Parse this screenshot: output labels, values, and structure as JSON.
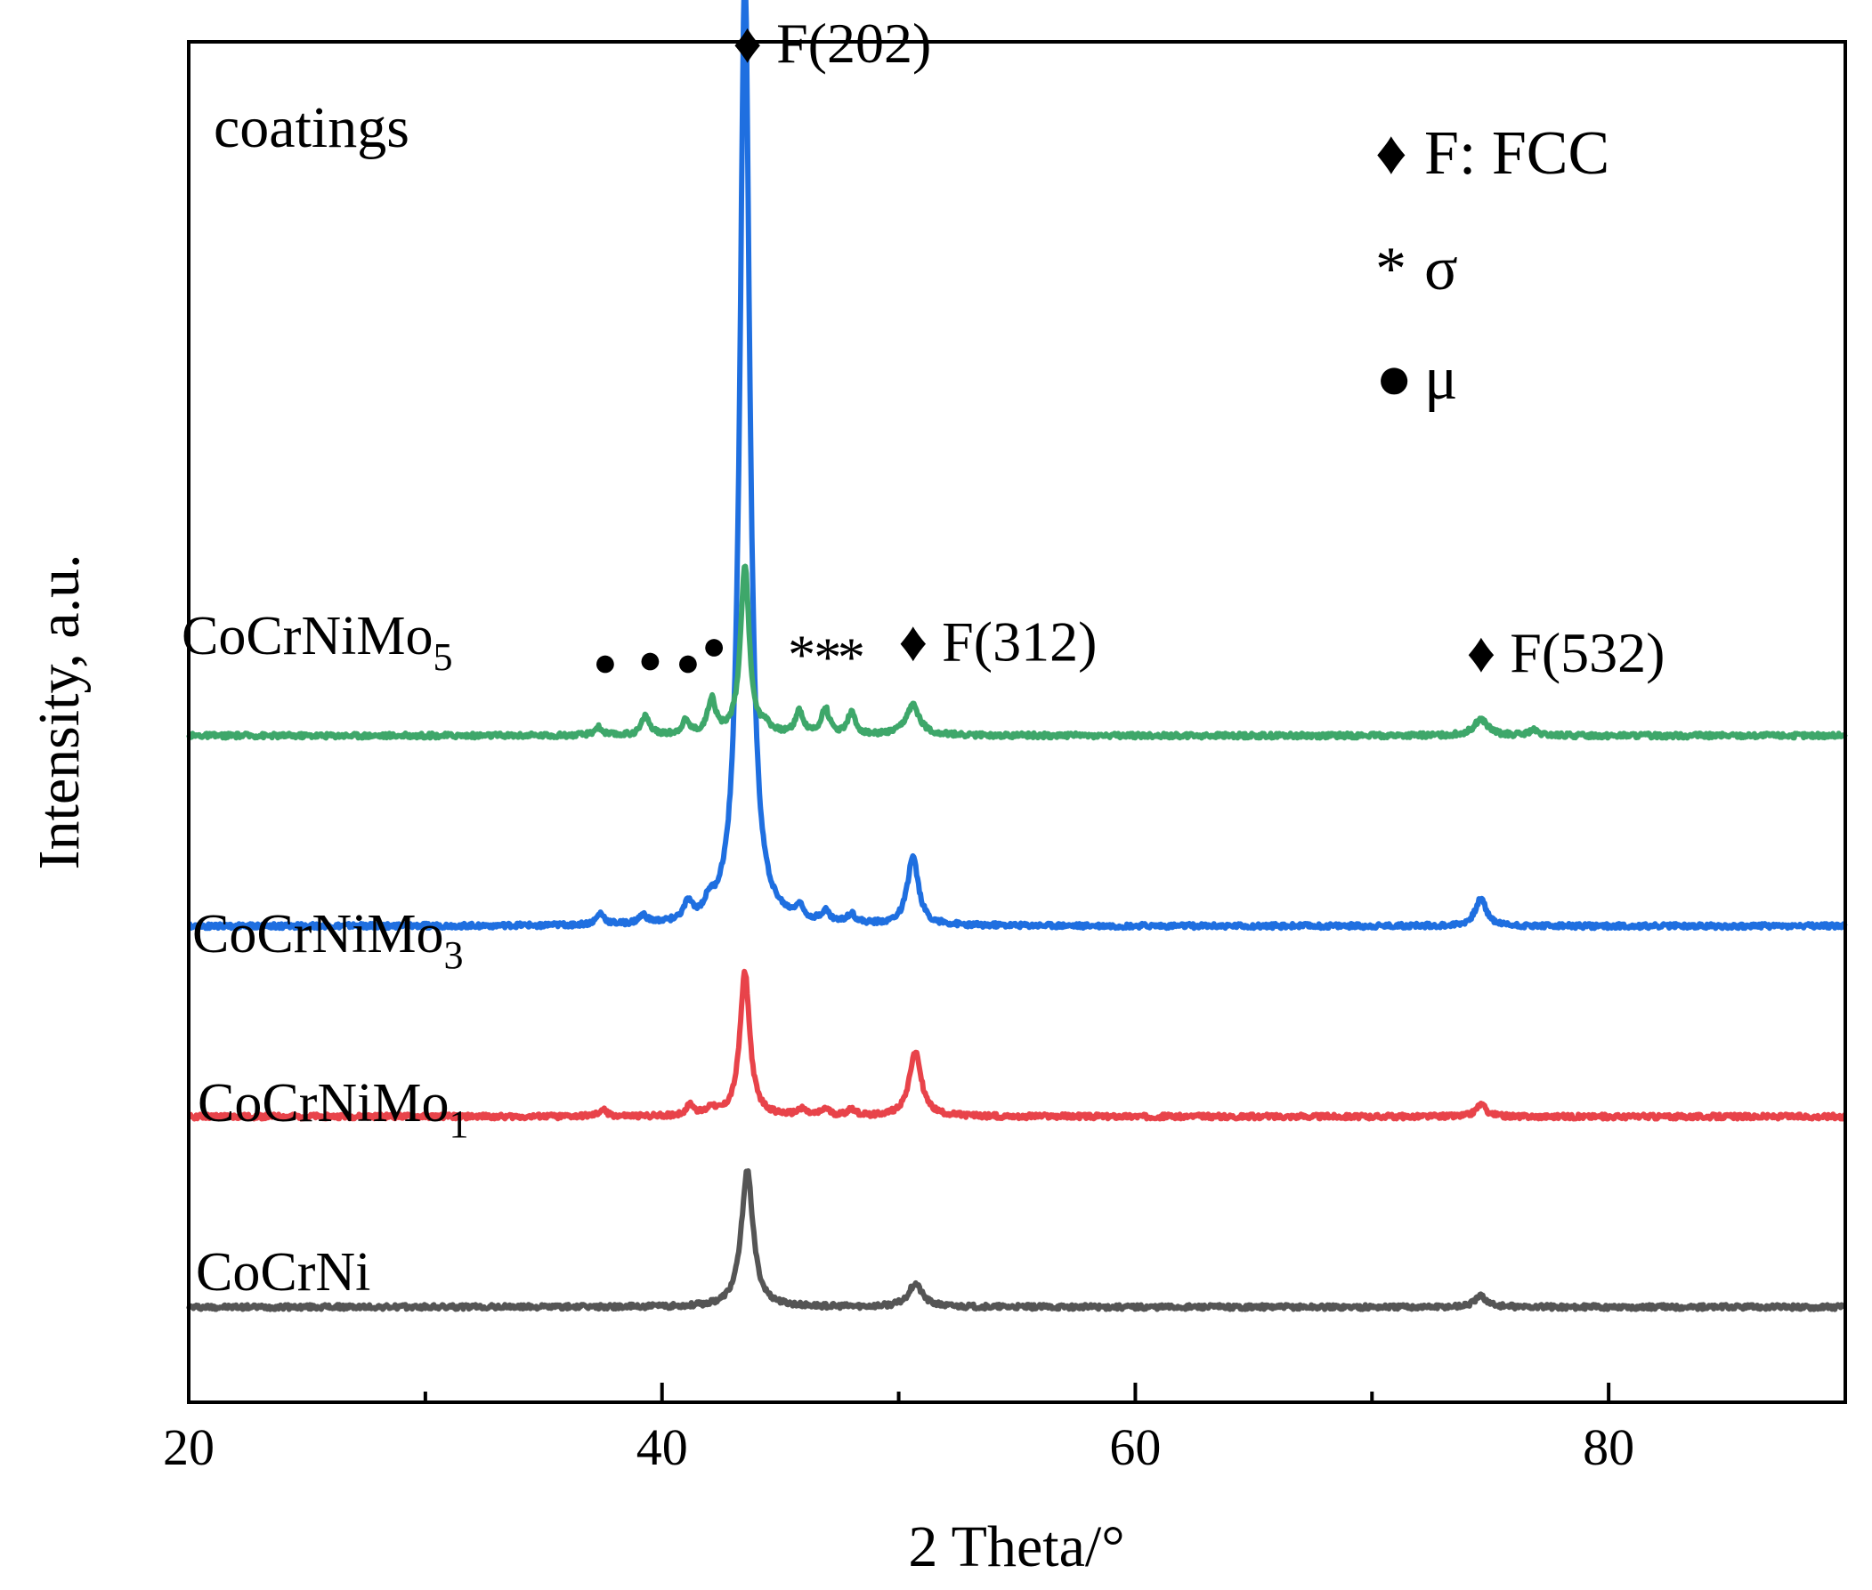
{
  "chart_data": {
    "type": "line",
    "panel_label": "coatings",
    "xlabel": "2 Theta/°",
    "ylabel": "Intensity, a.u.",
    "xlim": [
      20,
      90
    ],
    "ylim": [
      0,
      100
    ],
    "x_ticks": [
      20,
      40,
      60,
      80
    ],
    "x_tick_labels": [
      "20",
      "40",
      "60",
      "80"
    ],
    "x_minor_ticks": [
      30,
      50,
      70
    ],
    "series": [
      {
        "name": "CoCrNi",
        "base": "CoCrNi",
        "sub": "",
        "color": "#555555",
        "baseline": 7,
        "peaks": [
          [
            43.6,
            10.0,
            0.3
          ],
          [
            50.7,
            1.7,
            0.35
          ],
          [
            74.6,
            0.8,
            0.3
          ]
        ]
      },
      {
        "name": "CoCrNiMo1",
        "base": "CoCrNiMo",
        "sub": "1",
        "color": "#e8434a",
        "baseline": 21,
        "peaks": [
          [
            43.5,
            10.6,
            0.25
          ],
          [
            50.7,
            4.8,
            0.3
          ],
          [
            74.6,
            0.9,
            0.25
          ],
          [
            37.5,
            0.5,
            0.2
          ],
          [
            41.2,
            0.8,
            0.2
          ],
          [
            42.1,
            0.6,
            0.2
          ],
          [
            45.9,
            0.5,
            0.2
          ],
          [
            46.9,
            0.5,
            0.2
          ],
          [
            48.0,
            0.5,
            0.2
          ]
        ]
      },
      {
        "name": "CoCrNiMo3",
        "base": "CoCrNiMo",
        "sub": "3",
        "color": "#1f6fe0",
        "baseline": 35,
        "peaks": [
          [
            43.5,
            70.0,
            0.25
          ],
          [
            50.6,
            5.0,
            0.28
          ],
          [
            74.6,
            2.0,
            0.28
          ],
          [
            37.4,
            0.8,
            0.2
          ],
          [
            39.2,
            0.6,
            0.2
          ],
          [
            41.1,
            1.2,
            0.2
          ],
          [
            42.0,
            0.9,
            0.2
          ],
          [
            45.8,
            0.9,
            0.2
          ],
          [
            46.9,
            0.8,
            0.2
          ],
          [
            48.0,
            0.7,
            0.2
          ]
        ]
      },
      {
        "name": "CoCrNiMo5",
        "base": "CoCrNiMo",
        "sub": "5",
        "color": "#3ea76a",
        "baseline": 49,
        "peaks": [
          [
            43.5,
            12.5,
            0.22
          ],
          [
            50.6,
            2.2,
            0.35
          ],
          [
            74.6,
            1.2,
            0.35
          ],
          [
            37.3,
            0.6,
            0.2
          ],
          [
            39.3,
            1.4,
            0.2
          ],
          [
            41.0,
            1.0,
            0.2
          ],
          [
            42.1,
            2.6,
            0.2
          ],
          [
            44.4,
            0.6,
            0.2
          ],
          [
            45.8,
            1.7,
            0.2
          ],
          [
            46.9,
            1.9,
            0.2
          ],
          [
            48.0,
            1.6,
            0.2
          ],
          [
            76.8,
            0.4,
            0.2
          ]
        ]
      }
    ],
    "annotations": [
      {
        "symbol": "♦",
        "text": "F(202)",
        "x": 43.6,
        "y": 98.5
      },
      {
        "symbol": "♦",
        "text": "F(312)",
        "x": 50.6,
        "y": 54.5
      },
      {
        "symbol": "♦",
        "text": "F(532)",
        "x": 74.6,
        "y": 53.7
      }
    ],
    "phase_markers": [
      {
        "symbol": "●",
        "x": 37.6,
        "y": 53.4
      },
      {
        "symbol": "●",
        "x": 39.5,
        "y": 53.6
      },
      {
        "symbol": "●",
        "x": 41.1,
        "y": 53.4
      },
      {
        "symbol": "●",
        "x": 42.2,
        "y": 54.6
      },
      {
        "symbol": "*",
        "x": 45.9,
        "y": 53.6
      },
      {
        "symbol": "*",
        "x": 47.0,
        "y": 53.4
      },
      {
        "symbol": "*",
        "x": 48.0,
        "y": 53.4
      }
    ],
    "legend": {
      "position": "top-right",
      "entries": [
        {
          "symbol": "♦",
          "label": "F: FCC"
        },
        {
          "symbol": "*",
          "label": "σ"
        },
        {
          "symbol": "●",
          "label": "μ"
        }
      ]
    }
  }
}
